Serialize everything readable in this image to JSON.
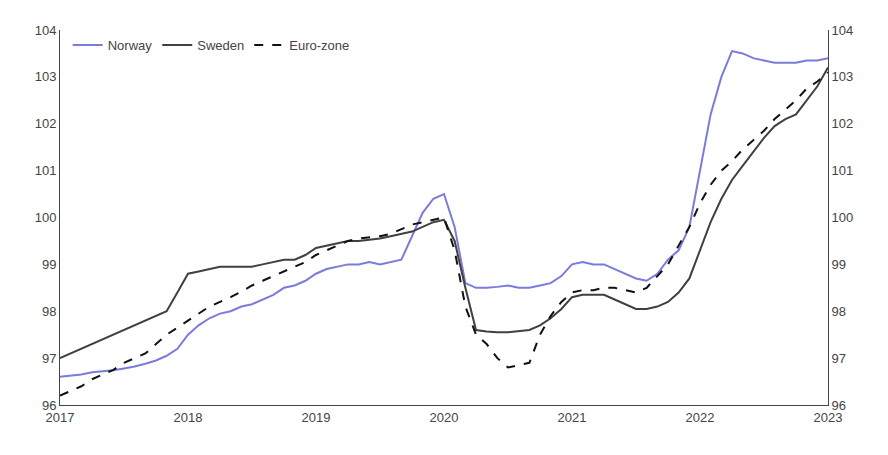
{
  "chart_data": {
    "type": "line",
    "x": [
      2017.0,
      2017.083,
      2017.167,
      2017.25,
      2017.333,
      2017.417,
      2017.5,
      2017.583,
      2017.667,
      2017.75,
      2017.833,
      2017.917,
      2018.0,
      2018.083,
      2018.167,
      2018.25,
      2018.333,
      2018.417,
      2018.5,
      2018.583,
      2018.667,
      2018.75,
      2018.833,
      2018.917,
      2019.0,
      2019.083,
      2019.167,
      2019.25,
      2019.333,
      2019.417,
      2019.5,
      2019.583,
      2019.667,
      2019.75,
      2019.833,
      2019.917,
      2020.0,
      2020.083,
      2020.167,
      2020.25,
      2020.333,
      2020.417,
      2020.5,
      2020.583,
      2020.667,
      2020.75,
      2020.833,
      2020.917,
      2021.0,
      2021.083,
      2021.167,
      2021.25,
      2021.333,
      2021.417,
      2021.5,
      2021.583,
      2021.667,
      2021.75,
      2021.833,
      2021.917,
      2022.0,
      2022.083,
      2022.167,
      2022.25,
      2022.333,
      2022.417,
      2022.5,
      2022.583,
      2022.667,
      2022.75,
      2022.833,
      2022.917,
      2023.0
    ],
    "series": [
      {
        "name": "Norway",
        "color": "#7b7bdb",
        "line_style": "solid",
        "values": [
          96.6,
          96.62,
          96.65,
          96.7,
          96.72,
          96.74,
          96.78,
          96.82,
          96.88,
          96.95,
          97.05,
          97.2,
          97.5,
          97.7,
          97.85,
          97.95,
          98.0,
          98.1,
          98.15,
          98.25,
          98.35,
          98.5,
          98.55,
          98.65,
          98.8,
          98.9,
          98.95,
          99.0,
          99.0,
          99.05,
          99.0,
          99.05,
          99.1,
          99.6,
          100.1,
          100.4,
          100.5,
          99.8,
          98.6,
          98.5,
          98.5,
          98.52,
          98.55,
          98.5,
          98.5,
          98.55,
          98.6,
          98.75,
          99.0,
          99.05,
          99.0,
          99.0,
          98.9,
          98.8,
          98.7,
          98.65,
          98.8,
          99.1,
          99.3,
          99.8,
          101.0,
          102.2,
          103.0,
          103.55,
          103.5,
          103.4,
          103.35,
          103.3,
          103.3,
          103.3,
          103.35,
          103.35,
          103.4
        ]
      },
      {
        "name": "Sweden",
        "color": "#404040",
        "line_style": "solid",
        "values": [
          97.0,
          97.1,
          97.2,
          97.3,
          97.4,
          97.5,
          97.6,
          97.7,
          97.8,
          97.9,
          98.0,
          98.4,
          98.8,
          98.85,
          98.9,
          98.95,
          98.95,
          98.95,
          98.95,
          99.0,
          99.05,
          99.1,
          99.1,
          99.2,
          99.35,
          99.4,
          99.45,
          99.5,
          99.5,
          99.52,
          99.55,
          99.6,
          99.65,
          99.7,
          99.8,
          99.9,
          99.95,
          99.5,
          98.5,
          97.6,
          97.57,
          97.55,
          97.55,
          97.57,
          97.6,
          97.7,
          97.85,
          98.05,
          98.3,
          98.35,
          98.35,
          98.35,
          98.25,
          98.15,
          98.05,
          98.05,
          98.1,
          98.2,
          98.4,
          98.7,
          99.3,
          99.9,
          100.4,
          100.8,
          101.1,
          101.4,
          101.7,
          101.95,
          102.1,
          102.2,
          102.5,
          102.8,
          103.2
        ]
      },
      {
        "name": "Euro-zone",
        "color": "#111111",
        "line_style": "dashed",
        "values": [
          96.2,
          96.3,
          96.4,
          96.55,
          96.65,
          96.75,
          96.9,
          97.0,
          97.1,
          97.3,
          97.5,
          97.65,
          97.8,
          97.95,
          98.1,
          98.2,
          98.3,
          98.42,
          98.55,
          98.65,
          98.75,
          98.85,
          98.95,
          99.05,
          99.2,
          99.3,
          99.4,
          99.5,
          99.55,
          99.58,
          99.6,
          99.65,
          99.75,
          99.85,
          99.9,
          99.95,
          100.0,
          99.3,
          98.1,
          97.5,
          97.3,
          97.0,
          96.8,
          96.85,
          96.9,
          97.5,
          97.9,
          98.2,
          98.4,
          98.45,
          98.45,
          98.5,
          98.5,
          98.45,
          98.4,
          98.5,
          98.75,
          99.0,
          99.4,
          99.8,
          100.3,
          100.7,
          101.0,
          101.2,
          101.45,
          101.65,
          101.85,
          102.1,
          102.3,
          102.5,
          102.75,
          102.9,
          103.1
        ]
      }
    ],
    "xlim": [
      2017,
      2023
    ],
    "xticks": [
      2017,
      2018,
      2019,
      2020,
      2021,
      2022,
      2023
    ],
    "ylim": [
      96,
      104
    ],
    "yticks": [
      96,
      97,
      98,
      99,
      100,
      101,
      102,
      103,
      104
    ],
    "y2lim": [
      96,
      104
    ],
    "y2ticks": [
      96,
      97,
      98,
      99,
      100,
      101,
      102,
      103,
      104
    ],
    "grid": false,
    "legend": "upper left"
  }
}
